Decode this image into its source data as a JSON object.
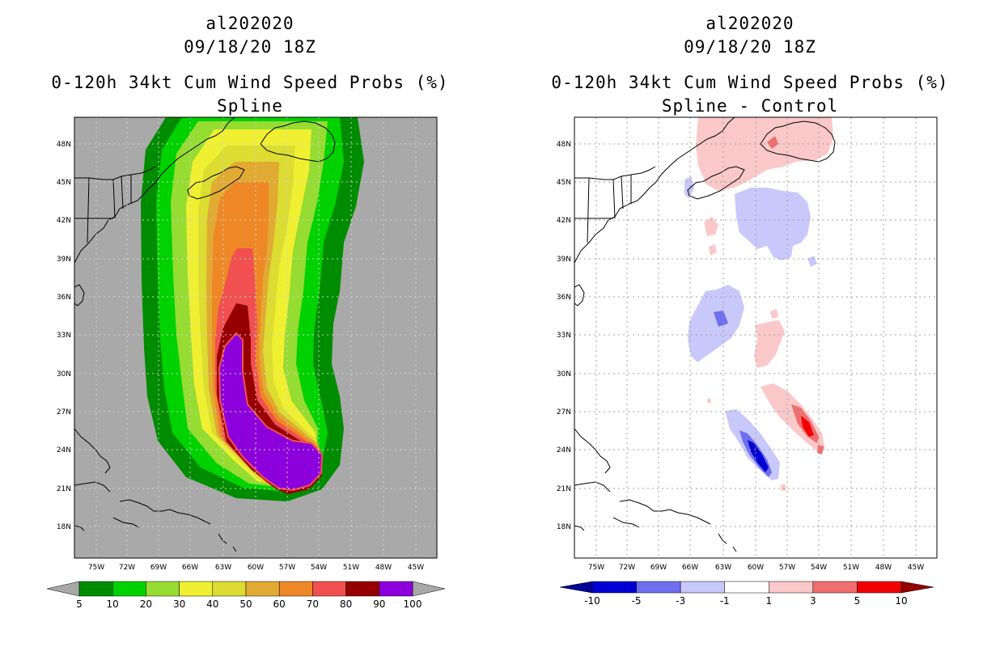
{
  "panels": [
    {
      "storm_id": "al202020",
      "datetime": "09/18/20 18Z",
      "product": "0-120h 34kt Cum Wind Speed Probs (%)",
      "subtitle": "Spline",
      "colorbar": {
        "colors": [
          "#008c00",
          "#00d200",
          "#96dc32",
          "#f0f032",
          "#dcdc32",
          "#e1aa32",
          "#ee8826",
          "#f05050",
          "#960000",
          "#8c00dc"
        ],
        "labels": [
          "5",
          "10",
          "20",
          "30",
          "40",
          "50",
          "60",
          "70",
          "80",
          "90",
          "100"
        ],
        "arrow_color": "#a8a8a8"
      }
    },
    {
      "storm_id": "al202020",
      "datetime": "09/18/20 18Z",
      "product": "0-120h 34kt Cum Wind Speed Probs (%)",
      "subtitle": "Spline - Control",
      "colorbar": {
        "colors": [
          "#0000d2",
          "#6e6ef0",
          "#c8c8fa",
          "#ffffff",
          "#fac8c8",
          "#f06e6e",
          "#f00000"
        ],
        "labels": [
          "-10",
          "-5",
          "-3",
          "-1",
          "1",
          "3",
          "5",
          "10"
        ],
        "arrow_low": "#000096",
        "arrow_high": "#960000"
      }
    }
  ],
  "map": {
    "lat_labels": [
      "48N",
      "45N",
      "42N",
      "39N",
      "36N",
      "33N",
      "30N",
      "27N",
      "24N",
      "21N",
      "18N"
    ],
    "lon_labels": [
      "75W",
      "72W",
      "69W",
      "66W",
      "63W",
      "60W",
      "57W",
      "54W",
      "51W",
      "48W",
      "45W"
    ],
    "ocean_color": "#a9a9a9"
  }
}
